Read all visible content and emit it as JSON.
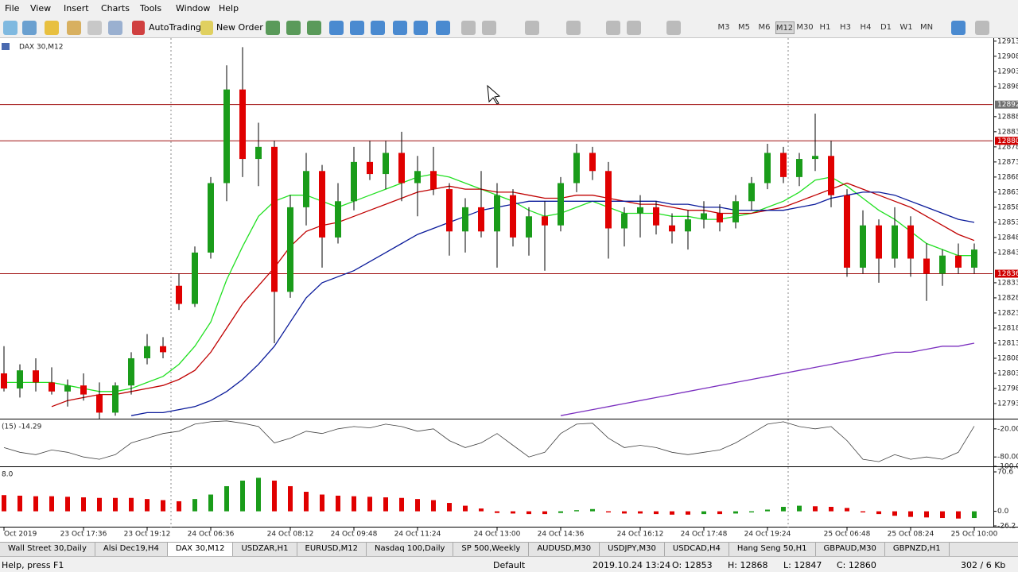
{
  "menu": [
    "File",
    "View",
    "Insert",
    "Charts",
    "Tools",
    "Window",
    "Help"
  ],
  "toolbar": {
    "buttons": [
      "AutoTrading",
      "New Order"
    ],
    "timeframes": [
      "M3",
      "M5",
      "M6",
      "M12",
      "M30",
      "H1",
      "H3",
      "H4",
      "D1",
      "W1",
      "MN"
    ],
    "active_timeframe": 3
  },
  "chart_data": [
    {
      "type": "candlestick",
      "title": "DAX 30,M12",
      "categories": [
        "Oct 2019",
        null,
        null,
        null,
        null,
        "23 Oct 17:36",
        null,
        null,
        null,
        "23 Oct 19:12",
        null,
        null,
        null,
        "24 Oct 06:36",
        null,
        null,
        null,
        null,
        "24 Oct 08:12",
        null,
        null,
        null,
        "24 Oct 09:48",
        null,
        null,
        null,
        "24 Oct 11:24",
        null,
        null,
        null,
        null,
        "24 Oct 13:00",
        null,
        null,
        null,
        "24 Oct 14:36",
        null,
        null,
        null,
        null,
        "24 Oct 16:12",
        null,
        null,
        null,
        "24 Oct 17:48",
        null,
        null,
        null,
        "24 Oct 19:24",
        null,
        null,
        null,
        null,
        "25 Oct 06:48",
        null,
        null,
        null,
        "25 Oct 08:24",
        null,
        null,
        null,
        "25 Oct 10:00"
      ],
      "open": [
        12803,
        12798,
        12804,
        12800,
        12797,
        12799,
        12796,
        12790,
        12799,
        12808,
        12812,
        12832,
        12826,
        12843,
        12866,
        12897,
        12874,
        12878,
        12830,
        12858,
        12870,
        12848,
        12860,
        12873,
        12869,
        12876,
        12866,
        12870,
        12864,
        12850,
        12858,
        12850,
        12862,
        12848,
        12855,
        12852,
        12866,
        12876,
        12870,
        12851,
        12856,
        12858,
        12852,
        12850,
        12854,
        12856,
        12853,
        12860,
        12866,
        12876,
        12868,
        12874,
        12875,
        12862,
        12838,
        12852,
        12841,
        12852,
        12841,
        12836,
        12842,
        12838
      ],
      "high": [
        12812,
        12806,
        12808,
        12805,
        12801,
        12803,
        12800,
        12800,
        12810,
        12816,
        12815,
        12836,
        12845,
        12868,
        12905,
        12911,
        12886,
        12880,
        12862,
        12876,
        12872,
        12866,
        12878,
        12880,
        12880,
        12883,
        12875,
        12878,
        12866,
        12861,
        12870,
        12866,
        12864,
        12858,
        12860,
        12868,
        12879,
        12878,
        12873,
        12858,
        12862,
        12860,
        12856,
        12857,
        12860,
        12859,
        12862,
        12868,
        12879,
        12878,
        12876,
        12889,
        12880,
        12864,
        12857,
        12854,
        12858,
        12855,
        12846,
        12844,
        12846,
        12846
      ],
      "low": [
        12797,
        12795,
        12797,
        12796,
        12792,
        12794,
        12788,
        12789,
        12796,
        12806,
        12808,
        12824,
        12825,
        12841,
        12860,
        12868,
        12865,
        12813,
        12828,
        12852,
        12838,
        12846,
        12857,
        12867,
        12864,
        12860,
        12855,
        12862,
        12842,
        12843,
        12848,
        12838,
        12845,
        12842,
        12837,
        12850,
        12863,
        12867,
        12841,
        12845,
        12848,
        12849,
        12846,
        12844,
        12851,
        12850,
        12851,
        12857,
        12864,
        12866,
        12865,
        12870,
        12858,
        12835,
        12836,
        12833,
        12838,
        12835,
        12827,
        12832,
        12836,
        12836
      ],
      "close": [
        12798,
        12804,
        12800,
        12797,
        12799,
        12796,
        12790,
        12799,
        12808,
        12812,
        12810,
        12826,
        12843,
        12866,
        12897,
        12874,
        12878,
        12830,
        12858,
        12870,
        12848,
        12860,
        12873,
        12869,
        12876,
        12866,
        12870,
        12864,
        12850,
        12858,
        12850,
        12862,
        12848,
        12855,
        12852,
        12866,
        12876,
        12870,
        12851,
        12856,
        12858,
        12852,
        12850,
        12854,
        12856,
        12853,
        12860,
        12866,
        12876,
        12868,
        12874,
        12875,
        12862,
        12838,
        12852,
        12841,
        12852,
        12841,
        12836,
        12842,
        12838,
        12844
      ],
      "up_color": "#1a9c1a",
      "down_color": "#e00000",
      "lines": [
        {
          "color": "#22e022",
          "values": [
            12800,
            12800,
            12800,
            12800,
            12799,
            12798,
            12797,
            12797,
            12798,
            12800,
            12802,
            12806,
            12812,
            12820,
            12834,
            12845,
            12855,
            12860,
            12862,
            12862,
            12860,
            12858,
            12860,
            12862,
            12864,
            12866,
            12868,
            12869,
            12868,
            12866,
            12864,
            12862,
            12860,
            12857,
            12855,
            12856,
            12858,
            12860,
            12858,
            12856,
            12856,
            12856,
            12855,
            12855,
            12854,
            12854,
            12855,
            12856,
            12858,
            12860,
            12863,
            12867,
            12868,
            12865,
            12861,
            12857,
            12854,
            12850,
            12846,
            12844,
            12842,
            12842
          ]
        },
        {
          "color": "#c00000",
          "values": [
            null,
            null,
            null,
            12792,
            12794,
            12795,
            12796,
            12796,
            12797,
            12798,
            12799,
            12801,
            12804,
            12810,
            12818,
            12826,
            12832,
            12838,
            12845,
            12850,
            12852,
            12853,
            12855,
            12857,
            12859,
            12861,
            12863,
            12864,
            12865,
            12864,
            12864,
            12863,
            12863,
            12862,
            12861,
            12861,
            12862,
            12862,
            12861,
            12860,
            12859,
            12859,
            12858,
            12857,
            12857,
            12856,
            12856,
            12856,
            12857,
            12858,
            12860,
            12862,
            12864,
            12866,
            12864,
            12862,
            12860,
            12858,
            12855,
            12852,
            12849,
            12847
          ]
        },
        {
          "color": "#0a1a9a",
          "values": [
            null,
            null,
            null,
            null,
            null,
            null,
            null,
            null,
            12789,
            12790,
            12790,
            12791,
            12792,
            12794,
            12797,
            12801,
            12806,
            12812,
            12820,
            12828,
            12833,
            12835,
            12837,
            12840,
            12843,
            12846,
            12849,
            12851,
            12853,
            12855,
            12857,
            12858,
            12859,
            12860,
            12860,
            12860,
            12860,
            12860,
            12860,
            12860,
            12860,
            12860,
            12859,
            12859,
            12858,
            12858,
            12857,
            12857,
            12857,
            12857,
            12858,
            12859,
            12861,
            12862,
            12863,
            12863,
            12862,
            12860,
            12858,
            12856,
            12854,
            12853
          ]
        },
        {
          "color": "#7b2fbf",
          "values": [
            null,
            null,
            null,
            null,
            null,
            null,
            null,
            null,
            null,
            null,
            null,
            null,
            null,
            null,
            null,
            null,
            null,
            null,
            null,
            null,
            null,
            null,
            null,
            null,
            null,
            null,
            null,
            null,
            null,
            null,
            null,
            null,
            null,
            null,
            null,
            12789,
            12790,
            12791,
            12792,
            12793,
            12794,
            12795,
            12796,
            12797,
            12798,
            12799,
            12800,
            12801,
            12802,
            12803,
            12804,
            12805,
            12806,
            12807,
            12808,
            12809,
            12810,
            12810,
            12811,
            12812,
            12812,
            12813
          ]
        }
      ],
      "levels": [
        12892,
        12880,
        12836
      ],
      "level_colors": [
        "#707070",
        "#d00000",
        "#d00000"
      ],
      "level_line_color": "#a01010",
      "ylim": [
        12788,
        12914
      ],
      "yticks": [
        12913,
        12908,
        12903,
        12898,
        12888,
        12883,
        12878,
        12873,
        12868,
        12863,
        12858,
        12853,
        12848,
        12843,
        12833,
        12828,
        12823,
        12818,
        12813,
        12808,
        12803,
        12798,
        12793
      ]
    },
    {
      "type": "line",
      "title": "(15) -14.29",
      "color": "#404040",
      "values": [
        -60,
        -70,
        -75,
        -65,
        -70,
        -80,
        -85,
        -75,
        -50,
        -40,
        -30,
        -25,
        -10,
        -5,
        -3,
        -8,
        -15,
        -50,
        -40,
        -25,
        -30,
        -20,
        -15,
        -18,
        -10,
        -15,
        -25,
        -20,
        -45,
        -60,
        -50,
        -30,
        -55,
        -80,
        -70,
        -30,
        -10,
        -8,
        -40,
        -60,
        -55,
        -60,
        -70,
        -75,
        -70,
        -65,
        -50,
        -30,
        -10,
        -5,
        -15,
        -20,
        -15,
        -45,
        -85,
        -90,
        -75,
        -85,
        -80,
        -85,
        -70,
        -14.29
      ],
      "ylim": [
        -100,
        0
      ],
      "yticks": [
        {
          "value": -20,
          "label": "-20.00"
        },
        {
          "value": -80,
          "label": "-80.00"
        },
        {
          "value": -100,
          "label": "-100.0"
        }
      ]
    },
    {
      "type": "bar",
      "title": "8.0",
      "up_color": "#1a9c1a",
      "down_color": "#e00000",
      "values": [
        29,
        28,
        27,
        27,
        26,
        25,
        24,
        24,
        24,
        22,
        20,
        18,
        22,
        30,
        45,
        55,
        60,
        55,
        45,
        35,
        30,
        28,
        27,
        26,
        25,
        24,
        22,
        20,
        15,
        10,
        5,
        -3,
        -4,
        -5,
        -5,
        -3,
        2,
        4,
        -2,
        -4,
        -4,
        -5,
        -6,
        -6,
        -5,
        -5,
        -4,
        -2,
        3,
        8,
        10,
        9,
        8,
        6,
        -2,
        -5,
        -8,
        -10,
        -11,
        -12,
        -13,
        -12
      ],
      "ylim": [
        -26.2,
        70.6
      ],
      "yticks": [
        70.6,
        {
          "value": 0,
          "label": "0.0"
        },
        -26.2
      ]
    }
  ],
  "tabs": [
    "Wall Street 30,Daily",
    "Alsi Dec19,H4",
    "DAX 30,M12",
    "USDZAR,H1",
    "EURUSD,M12",
    "Nasdaq 100,Daily",
    "SP 500,Weekly",
    "AUDUSD,M30",
    "USDJPY,M30",
    "USDCAD,H4",
    "Hang Seng 50,H1",
    "GBPAUD,M30",
    "GBPNZD,H1"
  ],
  "active_tab": 2,
  "status": {
    "help": "Help, press F1",
    "profile": "Default",
    "time": "2019.10.24 13:24",
    "open": "O: 12853",
    "high": "H: 12868",
    "low": "L: 12847",
    "close": "C: 12860",
    "traffic": "302 / 6 Kb"
  }
}
